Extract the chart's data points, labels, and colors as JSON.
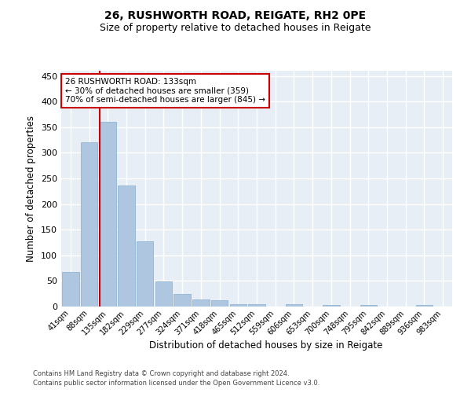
{
  "title1": "26, RUSHWORTH ROAD, REIGATE, RH2 0PE",
  "title2": "Size of property relative to detached houses in Reigate",
  "xlabel": "Distribution of detached houses by size in Reigate",
  "ylabel": "Number of detached properties",
  "bar_labels": [
    "41sqm",
    "88sqm",
    "135sqm",
    "182sqm",
    "229sqm",
    "277sqm",
    "324sqm",
    "371sqm",
    "418sqm",
    "465sqm",
    "512sqm",
    "559sqm",
    "606sqm",
    "653sqm",
    "700sqm",
    "748sqm",
    "795sqm",
    "842sqm",
    "889sqm",
    "936sqm",
    "983sqm"
  ],
  "bar_values": [
    67,
    320,
    360,
    236,
    127,
    49,
    25,
    14,
    12,
    4,
    4,
    0,
    4,
    0,
    3,
    0,
    3,
    0,
    0,
    3,
    0
  ],
  "bar_color": "#aec6e0",
  "bar_edge_color": "#85aece",
  "background_color": "#e8eef5",
  "grid_color": "#ffffff",
  "property_line_color": "#cc0000",
  "annotation_text": "26 RUSHWORTH ROAD: 133sqm\n← 30% of detached houses are smaller (359)\n70% of semi-detached houses are larger (845) →",
  "annotation_box_color": "#cc0000",
  "ylim": [
    0,
    460
  ],
  "yticks": [
    0,
    50,
    100,
    150,
    200,
    250,
    300,
    350,
    400,
    450
  ],
  "footer1": "Contains HM Land Registry data © Crown copyright and database right 2024.",
  "footer2": "Contains public sector information licensed under the Open Government Licence v3.0."
}
